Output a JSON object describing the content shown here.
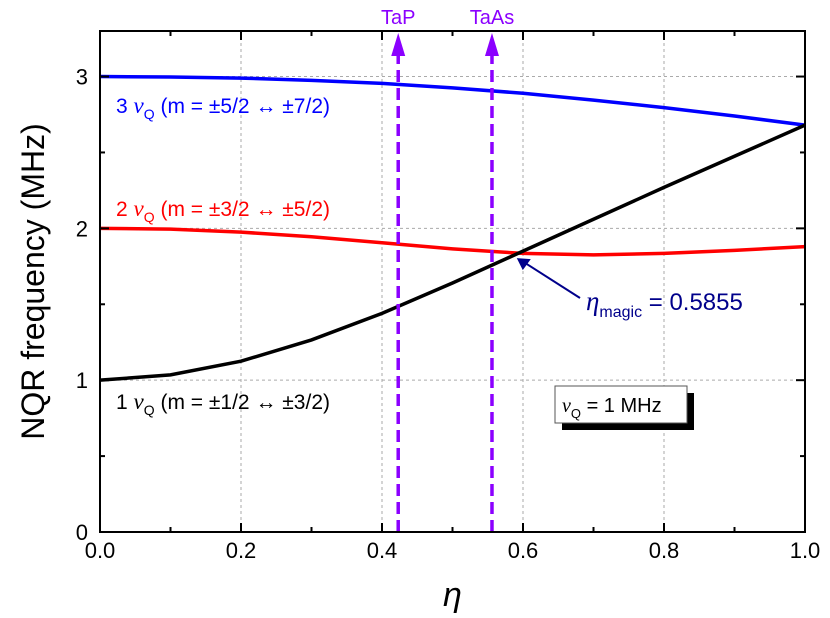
{
  "chart_data": {
    "type": "line",
    "xlabel": "η",
    "ylabel": "NQR frequency (MHz)",
    "xlim": [
      0,
      1.0
    ],
    "ylim": [
      0,
      3.3
    ],
    "xticks": [
      "0.0",
      "0.2",
      "0.4",
      "0.6",
      "0.8",
      "1.0"
    ],
    "yticks": [
      "0",
      "1",
      "2",
      "3"
    ],
    "grid": true,
    "x": [
      0,
      0.1,
      0.2,
      0.3,
      0.4,
      0.5,
      0.6,
      0.7,
      0.8,
      0.9,
      1.0
    ],
    "series": [
      {
        "name": "3νQ (m = ±5/2 ↔ ±7/2)",
        "prefix": "3",
        "transition": "(m = ±5/2 ↔ ±7/2)",
        "color": "#0000ff",
        "values": [
          3.0,
          2.997,
          2.99,
          2.975,
          2.955,
          2.925,
          2.89,
          2.845,
          2.795,
          2.74,
          2.68
        ]
      },
      {
        "name": "2νQ (m = ±3/2 ↔ ±5/2)",
        "prefix": "2",
        "transition": "(m = ±3/2 ↔ ±5/2)",
        "color": "#ff0000",
        "values": [
          2.0,
          1.995,
          1.975,
          1.945,
          1.905,
          1.865,
          1.835,
          1.825,
          1.835,
          1.855,
          1.88
        ]
      },
      {
        "name": "1νQ (m = ±1/2 ↔ ±3/2)",
        "prefix": "1",
        "transition": "(m = ±1/2 ↔ ±3/2)",
        "color": "#000000",
        "values": [
          1.0,
          1.035,
          1.125,
          1.265,
          1.44,
          1.64,
          1.85,
          2.06,
          2.27,
          2.475,
          2.68
        ]
      }
    ],
    "markers": [
      {
        "label": "TaP",
        "x": 0.423,
        "color": "#8b00ff"
      },
      {
        "label": "TaAs",
        "x": 0.556,
        "color": "#8b00ff"
      }
    ],
    "annotation": {
      "symbol": "η",
      "subscript": "magic",
      "text": "= 0.5855",
      "x": 0.5855,
      "y": 1.83,
      "color": "#00008b"
    },
    "legend_box": {
      "symbol": "ν",
      "subscript": "Q",
      "text": "= 1 MHz"
    },
    "nu_symbol": "ν",
    "nu_sub": "Q"
  }
}
